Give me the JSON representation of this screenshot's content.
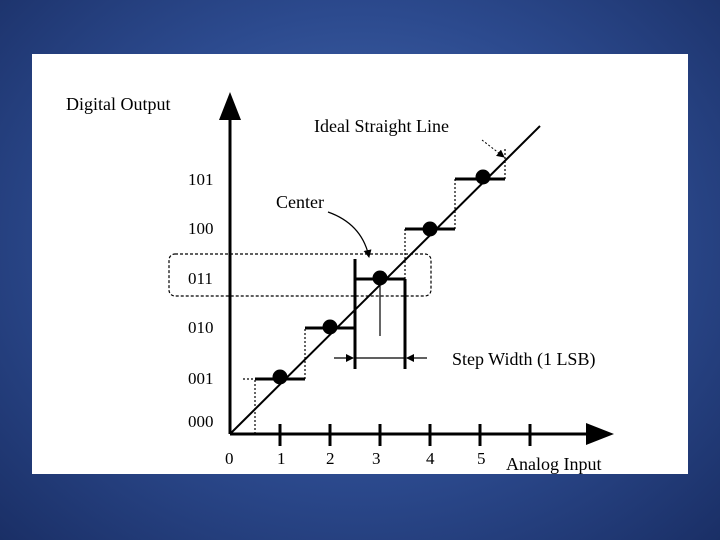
{
  "diagram": {
    "y_axis_label": "Digital Output",
    "x_axis_label": "Analog Input",
    "y_codes": [
      "000",
      "001",
      "010",
      "011",
      "100",
      "101"
    ],
    "x_ticks": [
      "0",
      "1",
      "2",
      "3",
      "4",
      "5"
    ],
    "annotations": {
      "ideal_line": "Ideal Straight Line",
      "center": "Center",
      "step_width": "Step Width (1 LSB)"
    },
    "center_points": [
      {
        "input": 1,
        "code": 1
      },
      {
        "input": 2,
        "code": 2
      },
      {
        "input": 3,
        "code": 3
      },
      {
        "input": 4,
        "code": 4
      },
      {
        "input": 5,
        "code": 5
      }
    ],
    "highlighted_code": "011"
  }
}
